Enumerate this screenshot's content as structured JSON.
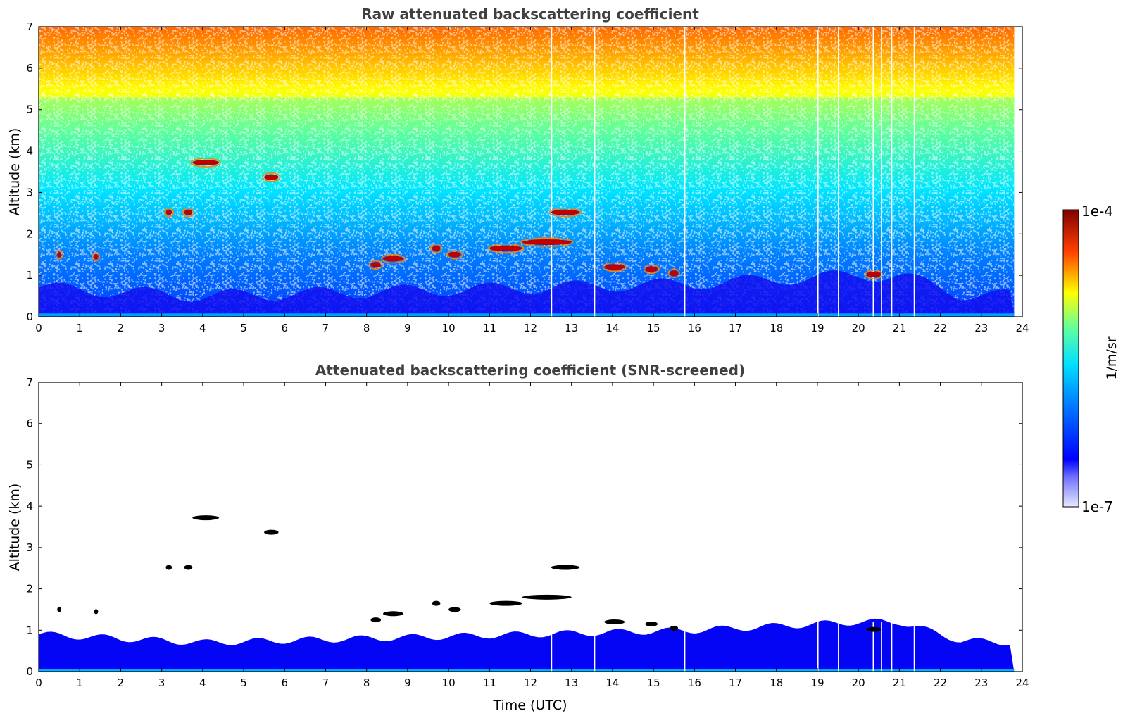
{
  "colors": {
    "background_low": "#1e20ff",
    "jet_stops": [
      "#e8e8ff",
      "#0000ff",
      "#00ffff",
      "#ffff00",
      "#ff0000",
      "#800000"
    ],
    "feature_core": "#000000"
  },
  "colorbar": {
    "label": "1/m/sr",
    "max_label": "1e-4",
    "min_label": "1e-7",
    "scale": "log",
    "range": [
      1e-07,
      0.0001
    ]
  },
  "chart_data": [
    {
      "type": "heatmap",
      "title": "Raw attenuated backscattering coefficient",
      "xlabel": "",
      "ylabel": "Altitude (km)",
      "xlim": [
        0,
        24
      ],
      "ylim": [
        0,
        7
      ],
      "xticks": [
        0,
        1,
        2,
        3,
        4,
        5,
        6,
        7,
        8,
        9,
        10,
        11,
        12,
        13,
        14,
        15,
        16,
        17,
        18,
        19,
        20,
        21,
        22,
        23,
        24
      ],
      "yticks": [
        0,
        1,
        2,
        3,
        4,
        5,
        6,
        7
      ],
      "data_time_range": [
        0,
        23.8
      ],
      "noise": "increases with altitude (blue near surface to yellow/red aloft)",
      "boundary_layer_top_km": [
        {
          "t": 0,
          "h": 0.7
        },
        {
          "t": 4,
          "h": 0.5
        },
        {
          "t": 8,
          "h": 0.6
        },
        {
          "t": 12,
          "h": 0.7
        },
        {
          "t": 16,
          "h": 0.8
        },
        {
          "t": 20,
          "h": 1.0
        },
        {
          "t": 21,
          "h": 1.0
        },
        {
          "t": 22.5,
          "h": 0.55
        },
        {
          "t": 23.8,
          "h": 0.5
        }
      ],
      "cloud_features": [
        {
          "t0": 3.75,
          "t1": 4.4,
          "alt": 3.72
        },
        {
          "t0": 5.5,
          "t1": 5.85,
          "alt": 3.37
        },
        {
          "t0": 3.1,
          "t1": 3.25,
          "alt": 2.52
        },
        {
          "t0": 3.55,
          "t1": 3.75,
          "alt": 2.52
        },
        {
          "t0": 12.5,
          "t1": 13.2,
          "alt": 2.52
        },
        {
          "t0": 11.8,
          "t1": 13.0,
          "alt": 1.8
        },
        {
          "t0": 11.0,
          "t1": 11.8,
          "alt": 1.65
        },
        {
          "t0": 9.6,
          "t1": 9.8,
          "alt": 1.65
        },
        {
          "t0": 10.0,
          "t1": 10.3,
          "alt": 1.5
        },
        {
          "t0": 8.4,
          "t1": 8.9,
          "alt": 1.4
        },
        {
          "t0": 8.1,
          "t1": 8.35,
          "alt": 1.25
        },
        {
          "t0": 13.8,
          "t1": 14.3,
          "alt": 1.2
        },
        {
          "t0": 14.8,
          "t1": 15.1,
          "alt": 1.15
        },
        {
          "t0": 15.4,
          "t1": 15.6,
          "alt": 1.05
        },
        {
          "t0": 20.2,
          "t1": 20.55,
          "alt": 1.02
        },
        {
          "t0": 0.45,
          "t1": 0.55,
          "alt": 1.5
        },
        {
          "t0": 1.35,
          "t1": 1.45,
          "alt": 1.45
        }
      ],
      "data_gaps_utc": [
        12.5,
        13.55,
        15.75,
        19.0,
        19.5,
        20.35,
        20.55,
        20.8,
        21.35
      ]
    },
    {
      "type": "heatmap",
      "title": "Attenuated backscattering coefficient (SNR-screened)",
      "xlabel": "Time (UTC)",
      "ylabel": "Altitude (km)",
      "xlim": [
        0,
        24
      ],
      "ylim": [
        0,
        7
      ],
      "xticks": [
        0,
        1,
        2,
        3,
        4,
        5,
        6,
        7,
        8,
        9,
        10,
        11,
        12,
        13,
        14,
        15,
        16,
        17,
        18,
        19,
        20,
        21,
        22,
        23,
        24
      ],
      "yticks": [
        0,
        1,
        2,
        3,
        4,
        5,
        6,
        7
      ],
      "screening": "pixels with low SNR removed (white)",
      "same_features_as": "Raw attenuated backscattering coefficient"
    }
  ]
}
